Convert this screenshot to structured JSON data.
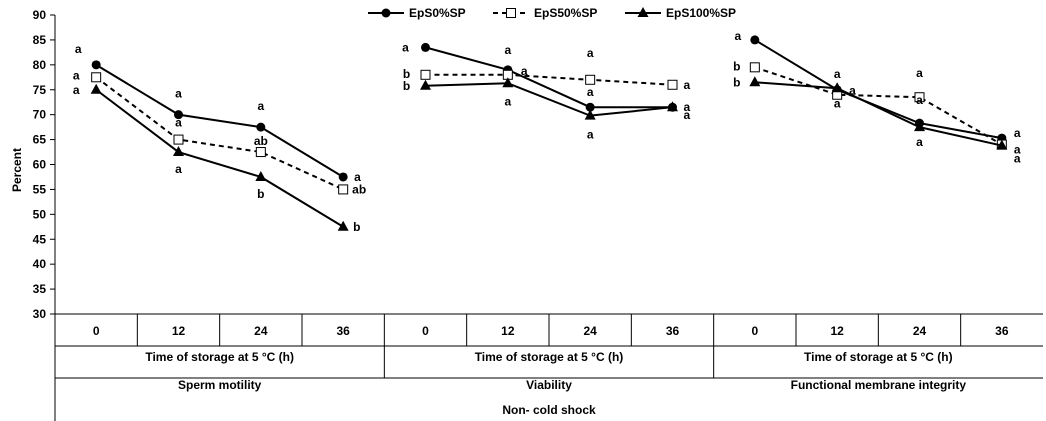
{
  "chart_data": {
    "type": "line",
    "ylabel": "Percent",
    "ylim": [
      30,
      90
    ],
    "yticks": [
      30,
      35,
      40,
      45,
      50,
      55,
      60,
      65,
      70,
      75,
      80,
      85,
      90
    ],
    "grid": false,
    "legend_position": "top-center",
    "legend": [
      {
        "name": "EpS0%SP",
        "marker": "filled-circle",
        "line": "solid"
      },
      {
        "name": "EpS50%SP",
        "marker": "open-square",
        "line": "dashed"
      },
      {
        "name": "EpS100%SP",
        "marker": "filled-triangle",
        "line": "solid"
      }
    ],
    "x_categories": [
      "0",
      "12",
      "24",
      "36"
    ],
    "group_axis_label": "Time of storage at 5 °C (h)",
    "outer_label": "Non- cold shock",
    "panels": [
      {
        "title": "Sperm motility",
        "series": [
          {
            "name": "EpS0%SP",
            "values": [
              80,
              70,
              67.5,
              57.5
            ],
            "labels": [
              "a",
              "a",
              "a",
              "a"
            ]
          },
          {
            "name": "EpS50%SP",
            "values": [
              77.5,
              65,
              62.5,
              55
            ],
            "labels": [
              "a",
              "a",
              "ab",
              "ab"
            ]
          },
          {
            "name": "EpS100%SP",
            "values": [
              75,
              62.5,
              57.5,
              47.5
            ],
            "labels": [
              "a",
              "a",
              "b",
              "b"
            ]
          }
        ]
      },
      {
        "title": "Viability",
        "series": [
          {
            "name": "EpS0%SP",
            "values": [
              83.5,
              79,
              71.5,
              71.5
            ],
            "labels": [
              "a",
              "a",
              "a",
              "a"
            ]
          },
          {
            "name": "EpS50%SP",
            "values": [
              78,
              78,
              77,
              76
            ],
            "labels": [
              "b",
              "a",
              "a",
              "a"
            ]
          },
          {
            "name": "EpS100%SP",
            "values": [
              75.8,
              76.3,
              69.8,
              71.5
            ],
            "labels": [
              "b",
              "a",
              "a",
              "a"
            ]
          }
        ]
      },
      {
        "title": "Functional membrane integrity",
        "series": [
          {
            "name": "EpS0%SP",
            "values": [
              85,
              75,
              68.3,
              65.3
            ],
            "labels": [
              "a",
              "a",
              "a",
              "a"
            ]
          },
          {
            "name": "EpS50%SP",
            "values": [
              79.5,
              74,
              73.5,
              64
            ],
            "labels": [
              "b",
              "a",
              "a",
              "a"
            ]
          },
          {
            "name": "EpS100%SP",
            "values": [
              76.5,
              75.3,
              67.5,
              63.8
            ],
            "labels": [
              "b",
              "a",
              "a",
              "a"
            ]
          }
        ]
      }
    ]
  }
}
